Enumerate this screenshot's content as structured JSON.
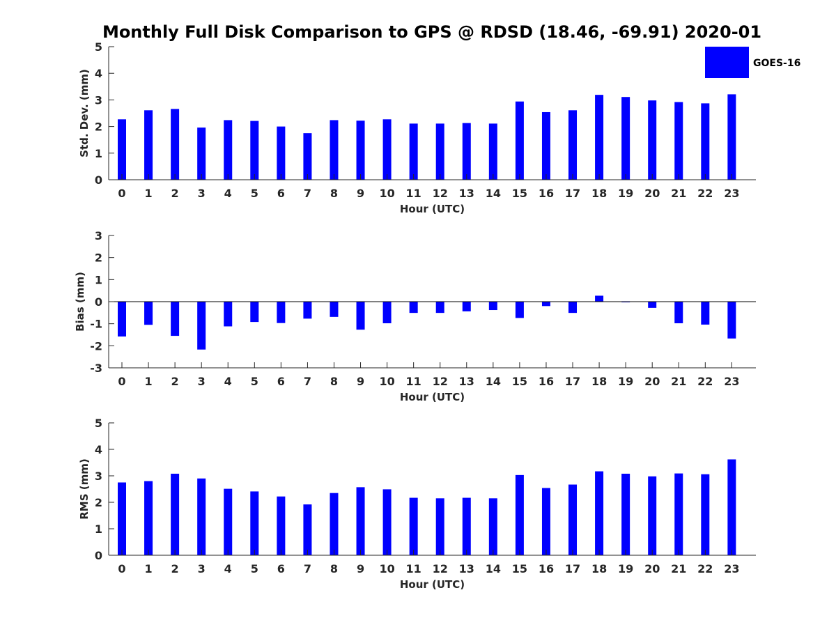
{
  "title": "Monthly Full Disk Comparison to GPS @ RDSD (18.46, -69.91) 2020-01",
  "legend": {
    "label": "GOES-16",
    "color": "#0000ff",
    "placement": "top-right"
  },
  "colors": {
    "bar": "#0000ff",
    "axis": "#262626"
  },
  "chart_data": [
    {
      "type": "bar",
      "title": "",
      "xlabel": "Hour (UTC)",
      "ylabel": "Std. Dev. (mm)",
      "categories": [
        "0",
        "1",
        "2",
        "3",
        "4",
        "5",
        "6",
        "7",
        "8",
        "9",
        "10",
        "11",
        "12",
        "13",
        "14",
        "15",
        "16",
        "17",
        "18",
        "19",
        "20",
        "21",
        "22",
        "23"
      ],
      "yticks": [
        "0",
        "1",
        "2",
        "3",
        "4",
        "5"
      ],
      "ylim": [
        0,
        5
      ],
      "grid": false,
      "series": [
        {
          "name": "GOES-16",
          "values": [
            2.27,
            2.61,
            2.66,
            1.96,
            2.24,
            2.21,
            2.0,
            1.75,
            2.24,
            2.22,
            2.27,
            2.11,
            2.11,
            2.13,
            2.11,
            2.94,
            2.54,
            2.61,
            3.19,
            3.11,
            2.98,
            2.92,
            2.87,
            3.21
          ]
        }
      ]
    },
    {
      "type": "bar",
      "title": "",
      "xlabel": "Hour (UTC)",
      "ylabel": "Bias (mm)",
      "categories": [
        "0",
        "1",
        "2",
        "3",
        "4",
        "5",
        "6",
        "7",
        "8",
        "9",
        "10",
        "11",
        "12",
        "13",
        "14",
        "15",
        "16",
        "17",
        "18",
        "19",
        "20",
        "21",
        "22",
        "23"
      ],
      "yticks": [
        "-3",
        "-2",
        "-1",
        "0",
        "1",
        "2",
        "3"
      ],
      "ylim": [
        -3,
        3
      ],
      "grid": false,
      "series": [
        {
          "name": "GOES-16",
          "values": [
            -1.58,
            -1.05,
            -1.55,
            -2.17,
            -1.12,
            -0.92,
            -0.97,
            -0.77,
            -0.69,
            -1.27,
            -0.98,
            -0.51,
            -0.51,
            -0.44,
            -0.38,
            -0.74,
            -0.2,
            -0.51,
            0.27,
            -0.03,
            -0.28,
            -0.98,
            -1.04,
            -1.67
          ]
        }
      ]
    },
    {
      "type": "bar",
      "title": "",
      "xlabel": "Hour (UTC)",
      "ylabel": "RMS (mm)",
      "categories": [
        "0",
        "1",
        "2",
        "3",
        "4",
        "5",
        "6",
        "7",
        "8",
        "9",
        "10",
        "11",
        "12",
        "13",
        "14",
        "15",
        "16",
        "17",
        "18",
        "19",
        "20",
        "21",
        "22",
        "23"
      ],
      "yticks": [
        "0",
        "1",
        "2",
        "3",
        "4",
        "5"
      ],
      "ylim": [
        0,
        5
      ],
      "grid": false,
      "series": [
        {
          "name": "GOES-16",
          "values": [
            2.75,
            2.8,
            3.08,
            2.9,
            2.51,
            2.41,
            2.22,
            1.92,
            2.35,
            2.57,
            2.49,
            2.17,
            2.15,
            2.17,
            2.15,
            3.03,
            2.54,
            2.67,
            3.17,
            3.08,
            2.98,
            3.09,
            3.06,
            3.62
          ]
        }
      ]
    }
  ]
}
